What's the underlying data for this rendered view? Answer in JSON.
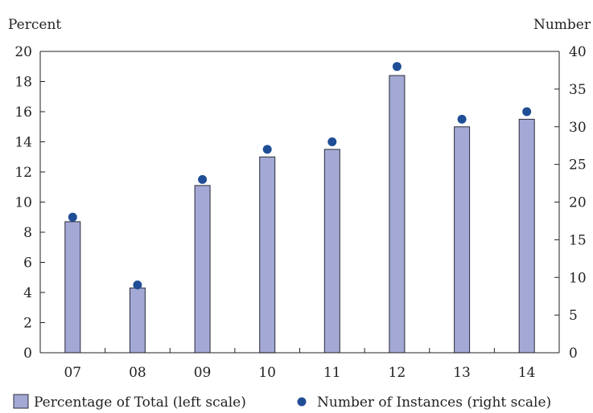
{
  "chart_data": {
    "type": "bar",
    "categories": [
      "07",
      "08",
      "09",
      "10",
      "11",
      "12",
      "13",
      "14"
    ],
    "left_unit": "Percent",
    "right_unit": "Number",
    "series": [
      {
        "name": "Percentage of Total (left scale)",
        "axis": "left",
        "kind": "bar",
        "values": [
          8.7,
          4.3,
          11.1,
          13.0,
          13.5,
          18.4,
          15.0,
          15.5
        ]
      },
      {
        "name": "Number of Instances (right scale)",
        "axis": "right",
        "kind": "point",
        "values": [
          18,
          9,
          23,
          27,
          28,
          38,
          31,
          32
        ]
      }
    ],
    "ylim_left": [
      0,
      20
    ],
    "ylim_right": [
      0,
      40
    ],
    "yticks_left": [
      "0",
      "2",
      "4",
      "6",
      "8",
      "10",
      "12",
      "14",
      "16",
      "18",
      "20"
    ],
    "yticks_right": [
      "0",
      "5",
      "10",
      "15",
      "20",
      "25",
      "30",
      "35",
      "40"
    ],
    "grid": false,
    "legend_position": "bottom",
    "colors": {
      "bar_fill": "#a3a8d4",
      "bar_stroke": "#2b2b3a",
      "point": "#1f4e96",
      "axis": "#222222"
    }
  }
}
